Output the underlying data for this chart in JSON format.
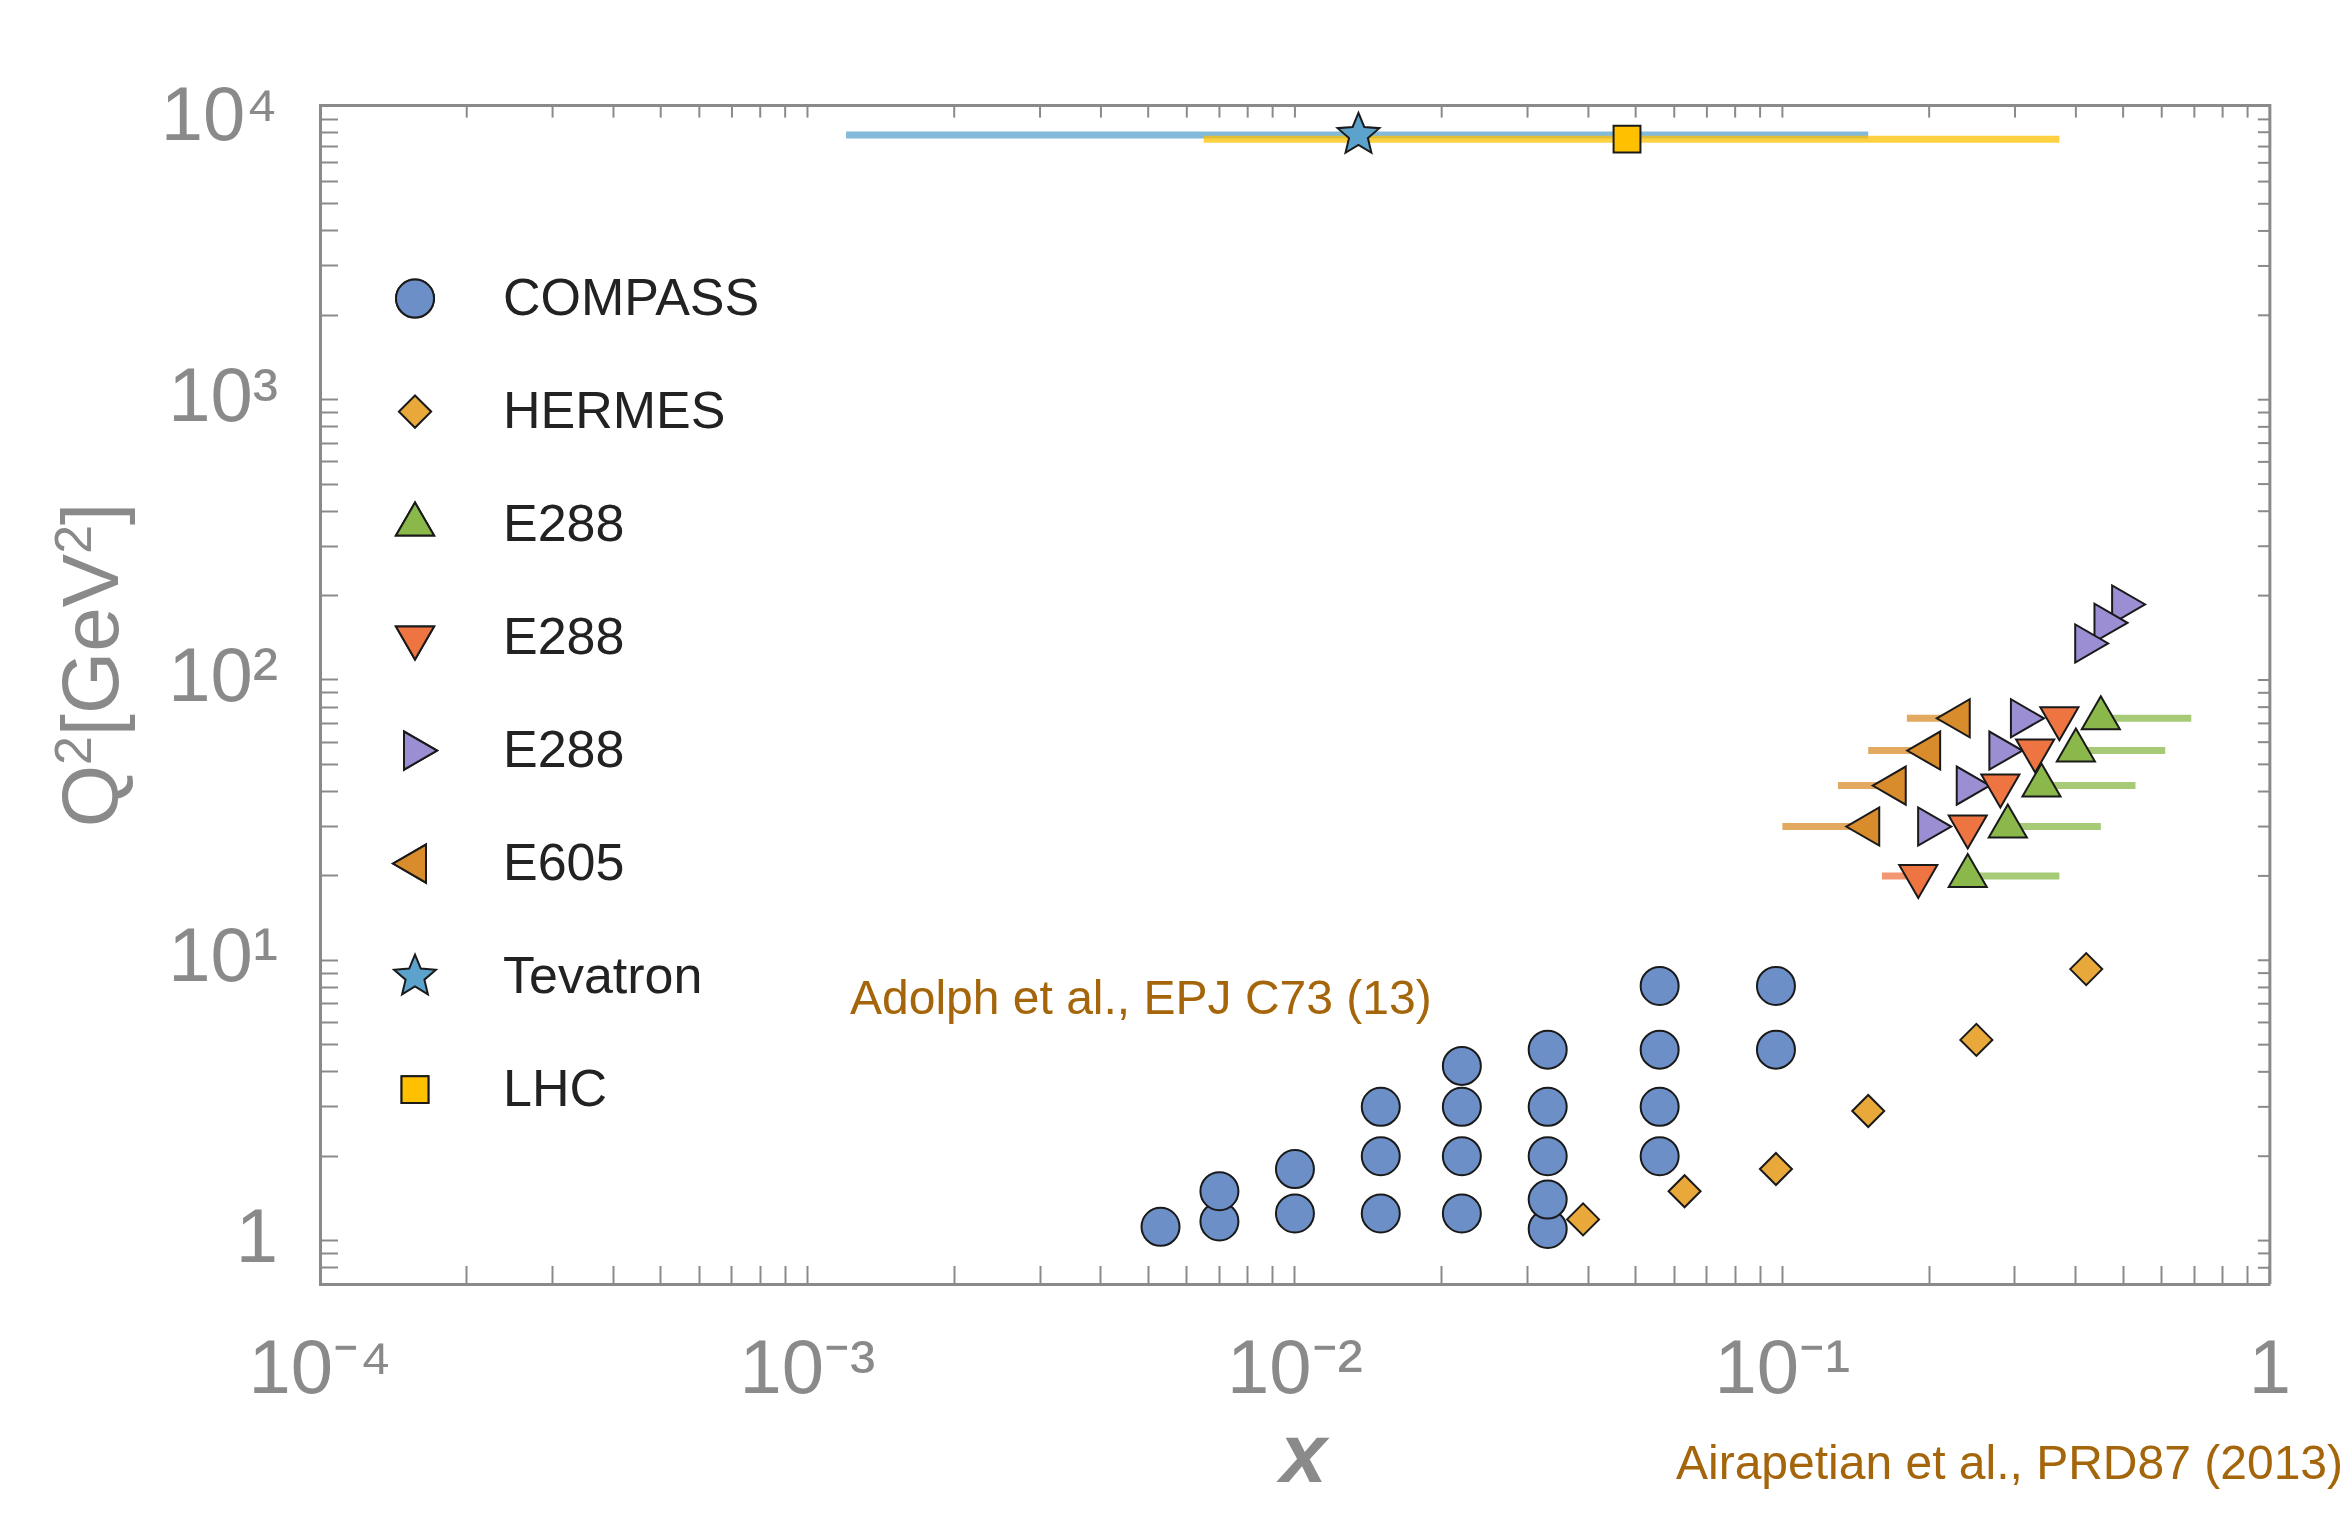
{
  "chart_data": {
    "type": "scatter",
    "xlabel": "x",
    "ylabel": "Q$^{2}$[GeV$^{2}$]",
    "log": "xy",
    "grid": false,
    "legend": "top left",
    "xlim": [
      0.0001,
      1
    ],
    "ylim": [
      0.72,
      11200
    ],
    "xticks": [
      {
        "value": 0.0001,
        "label": "10⁻⁴"
      },
      {
        "value": 0.0002,
        "label": null
      },
      {
        "value": 0.0003,
        "label": null
      },
      {
        "value": 0.0004,
        "label": null
      },
      {
        "value": 0.0005,
        "label": null
      },
      {
        "value": 0.0006,
        "label": null
      },
      {
        "value": 0.0007,
        "label": null
      },
      {
        "value": 0.0008,
        "label": null
      },
      {
        "value": 0.0009,
        "label": null
      },
      {
        "value": 0.001,
        "label": "10⁻³"
      },
      {
        "value": 0.002,
        "label": null
      },
      {
        "value": 0.003,
        "label": null
      },
      {
        "value": 0.004,
        "label": null
      },
      {
        "value": 0.005,
        "label": null
      },
      {
        "value": 0.006,
        "label": null
      },
      {
        "value": 0.007,
        "label": null
      },
      {
        "value": 0.008,
        "label": null
      },
      {
        "value": 0.009,
        "label": null
      },
      {
        "value": 0.01,
        "label": "10⁻²"
      },
      {
        "value": 0.02,
        "label": null
      },
      {
        "value": 0.03,
        "label": null
      },
      {
        "value": 0.04,
        "label": null
      },
      {
        "value": 0.05,
        "label": null
      },
      {
        "value": 0.06,
        "label": null
      },
      {
        "value": 0.07,
        "label": null
      },
      {
        "value": 0.08,
        "label": null
      },
      {
        "value": 0.09,
        "label": null
      },
      {
        "value": 0.1,
        "label": "10⁻¹"
      },
      {
        "value": 0.2,
        "label": null
      },
      {
        "value": 0.3,
        "label": null
      },
      {
        "value": 0.4,
        "label": null
      },
      {
        "value": 0.5,
        "label": null
      },
      {
        "value": 0.6,
        "label": null
      },
      {
        "value": 0.7,
        "label": null
      },
      {
        "value": 0.8,
        "label": null
      },
      {
        "value": 0.9,
        "label": null
      },
      1
    ],
    "yticks": [
      {
        "value": 0.8,
        "label": null
      },
      {
        "value": 0.9,
        "label": null
      },
      1,
      {
        "value": 2,
        "label": null
      },
      {
        "value": 3,
        "label": null
      },
      {
        "value": 4,
        "label": null
      },
      {
        "value": 5,
        "label": null
      },
      {
        "value": 6,
        "label": null
      },
      {
        "value": 7,
        "label": null
      },
      {
        "value": 8,
        "label": null
      },
      {
        "value": 9,
        "label": null
      },
      {
        "value": 10,
        "label": "10¹"
      },
      {
        "value": 20,
        "label": null
      },
      {
        "value": 30,
        "label": null
      },
      {
        "value": 40,
        "label": null
      },
      {
        "value": 50,
        "label": null
      },
      {
        "value": 60,
        "label": null
      },
      {
        "value": 70,
        "label": null
      },
      {
        "value": 80,
        "label": null
      },
      {
        "value": 90,
        "label": null
      },
      {
        "value": 100,
        "label": "10²"
      },
      {
        "value": 200,
        "label": null
      },
      {
        "value": 300,
        "label": null
      },
      {
        "value": 400,
        "label": null
      },
      {
        "value": 500,
        "label": null
      },
      {
        "value": 600,
        "label": null
      },
      {
        "value": 700,
        "label": null
      },
      {
        "value": 800,
        "label": null
      },
      {
        "value": 900,
        "label": null
      },
      {
        "value": 1000,
        "label": "10³"
      },
      {
        "value": 2000,
        "label": null
      },
      {
        "value": 3000,
        "label": null
      },
      {
        "value": 4000,
        "label": null
      },
      {
        "value": 5000,
        "label": null
      },
      {
        "value": 6000,
        "label": null
      },
      {
        "value": 7000,
        "label": null
      },
      {
        "value": 8000,
        "label": null
      },
      {
        "value": 9000,
        "label": null
      },
      {
        "value": 10000,
        "label": "10⁴"
      }
    ],
    "series": [
      {
        "name": "COMPASS",
        "color": "#6b8fc6",
        "marker": "circle",
        "x": [
          0.0053,
          0.007,
          0.007,
          0.01,
          0.01,
          0.015,
          0.015,
          0.015,
          0.022,
          0.022,
          0.022,
          0.022,
          0.033,
          0.033,
          0.033,
          0.033,
          0.033,
          0.056,
          0.056,
          0.056,
          0.056,
          0.097,
          0.097
        ],
        "values": [
          1.12,
          1.17,
          1.5,
          1.25,
          1.8,
          1.25,
          2.0,
          3.0,
          1.25,
          2.0,
          3.0,
          4.2,
          1.1,
          1.4,
          2.0,
          3.0,
          4.8,
          2.0,
          3.0,
          4.8,
          8.1,
          4.8,
          8.1
        ]
      },
      {
        "name": "HERMES",
        "color": "#e9a93a",
        "marker": "diamond",
        "x": [
          0.039,
          0.063,
          0.097,
          0.15,
          0.25,
          0.42
        ],
        "values": [
          1.19,
          1.5,
          1.8,
          2.9,
          5.2,
          9.3
        ]
      },
      {
        "name": "E288",
        "color": "#8ab84a",
        "marker": "triangle",
        "x": [
          0.45,
          0.4,
          0.34,
          0.29,
          0.24
        ],
        "values": [
          73,
          56,
          42,
          30,
          20
        ],
        "xerrors": [
          [
            0.45,
            0.69
          ],
          [
            0.4,
            0.61
          ],
          [
            0.34,
            0.53
          ],
          [
            0.29,
            0.45
          ],
          [
            0.24,
            0.37
          ]
        ]
      },
      {
        "name": "E288",
        "color": "#ee7442",
        "marker": "triangle-down",
        "x": [
          0.37,
          0.33,
          0.28,
          0.24,
          0.19
        ],
        "values": [
          73,
          56,
          42,
          30,
          20
        ],
        "xerrors": [
          null,
          null,
          null,
          null,
          [
            0.16,
            0.19
          ]
        ]
      },
      {
        "name": "E288",
        "color": "#9b8ed3",
        "marker": "triangle-right",
        "x": [
          0.31,
          0.28,
          0.24,
          0.2,
          0.5,
          0.46,
          0.42
        ],
        "values": [
          73,
          56,
          42,
          30,
          186,
          160,
          135
        ]
      },
      {
        "name": "E605",
        "color": "#d98c2c",
        "marker": "triangle-left",
        "x": [
          0.23,
          0.2,
          0.17,
          0.15
        ],
        "values": [
          73,
          56,
          42,
          30
        ],
        "xerrors": [
          [
            0.18,
            0.23
          ],
          [
            0.15,
            0.2
          ],
          [
            0.13,
            0.17
          ],
          [
            0.1,
            0.15
          ]
        ]
      },
      {
        "name": "Tevatron",
        "color": "#5ba3cc",
        "marker": "star",
        "x": [
          0.0135
        ],
        "values": [
          8800
        ],
        "xerrors": [
          [
            0.0012,
            0.15
          ]
        ]
      },
      {
        "name": "LHC",
        "color": "#ffc000",
        "marker": "square",
        "x": [
          0.048
        ],
        "values": [
          8500
        ],
        "xerrors": [
          [
            0.0065,
            0.37
          ]
        ]
      }
    ],
    "annotations": [
      "Adolph et al., EPJ C73 (13)",
      "Airapetian et al., PRD87 (2013)"
    ]
  }
}
